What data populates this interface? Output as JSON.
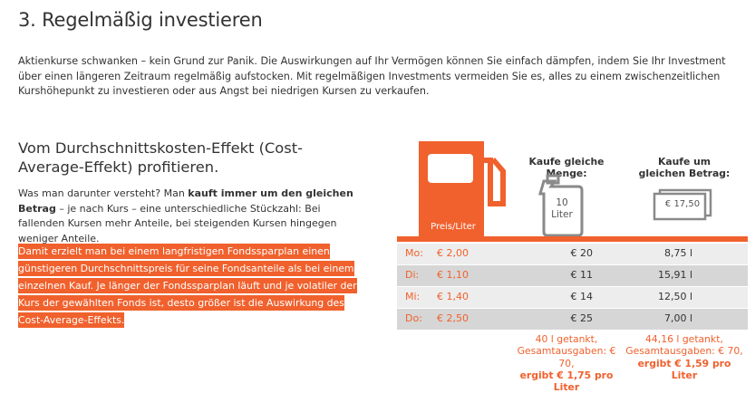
{
  "heading": "3. Regelmäßig investieren",
  "intro": "Aktienkurse schwanken – kein Grund zur Panik. Die Auswirkungen auf Ihr Vermögen können Sie einfach dämpfen, indem Sie Ihr Investment über einen längeren Zeitraum regelmäßig aufstocken. Mit regelmäßigen Investments vermeiden Sie es, alles zu einem zwischenzeitlichen Kurshöhepunkt zu investieren oder aus Angst bei niedrigen Kursen zu verkaufen.",
  "section": {
    "title": "Vom Durchschnittskosten-Effekt (Cost-Average-Effekt) profitieren.",
    "para_start": "Was man darunter versteht? Man ",
    "para_bold": "kauft immer um den gleichen Betrag",
    "para_end": " – je nach Kurs – eine unterschiedliche Stückzahl: Bei fallenden Kursen mehr Anteile, bei steigenden Kursen hingegen weniger Anteile.",
    "highlight": "Damit erzielt man bei einem langfristigen Fondssparplan einen günstigeren Durchschnittspreis für seine Fondsanteile als bei einem einzelnen Kauf. Je länger der Fondssparplan läuft und je volatiler der Kurs der gewählten Fonds ist, desto größer ist die Auswirkung des Cost-Average-Effekts."
  },
  "infographic": {
    "pump_label": "Preis/Liter",
    "col_a_title": "Kaufe gleiche Menge:",
    "col_b_title": "Kaufe um gleichen Betrag:",
    "canister_text": "10 Liter",
    "bill_text": "€ 17,50",
    "rows": [
      {
        "day": "Mo:",
        "price": "€ 2,00",
        "sum": "€ 20",
        "liters": "8,75 l"
      },
      {
        "day": "Di:",
        "price": "€ 1,10",
        "sum": "€ 11",
        "liters": "15,91 l"
      },
      {
        "day": "Mi:",
        "price": "€ 1,40",
        "sum": "€ 14",
        "liters": "12,50 l"
      },
      {
        "day": "Do:",
        "price": "€ 2,50",
        "sum": "€ 25",
        "liters": "7,00 l"
      }
    ],
    "summary_a": {
      "line1": "40 l getankt,",
      "line2": "Gesamtausgaben: € 70,",
      "line3": "ergibt € 1,75 pro Liter"
    },
    "summary_b": {
      "line1": "44,16 l getankt,",
      "line2": "Gesamtausgaben: € 70,",
      "line3": "ergibt € 1,59 pro Liter"
    },
    "colors": {
      "accent": "#f0612d",
      "row_light": "#ededed",
      "row_dark": "#d6d6d6"
    }
  }
}
